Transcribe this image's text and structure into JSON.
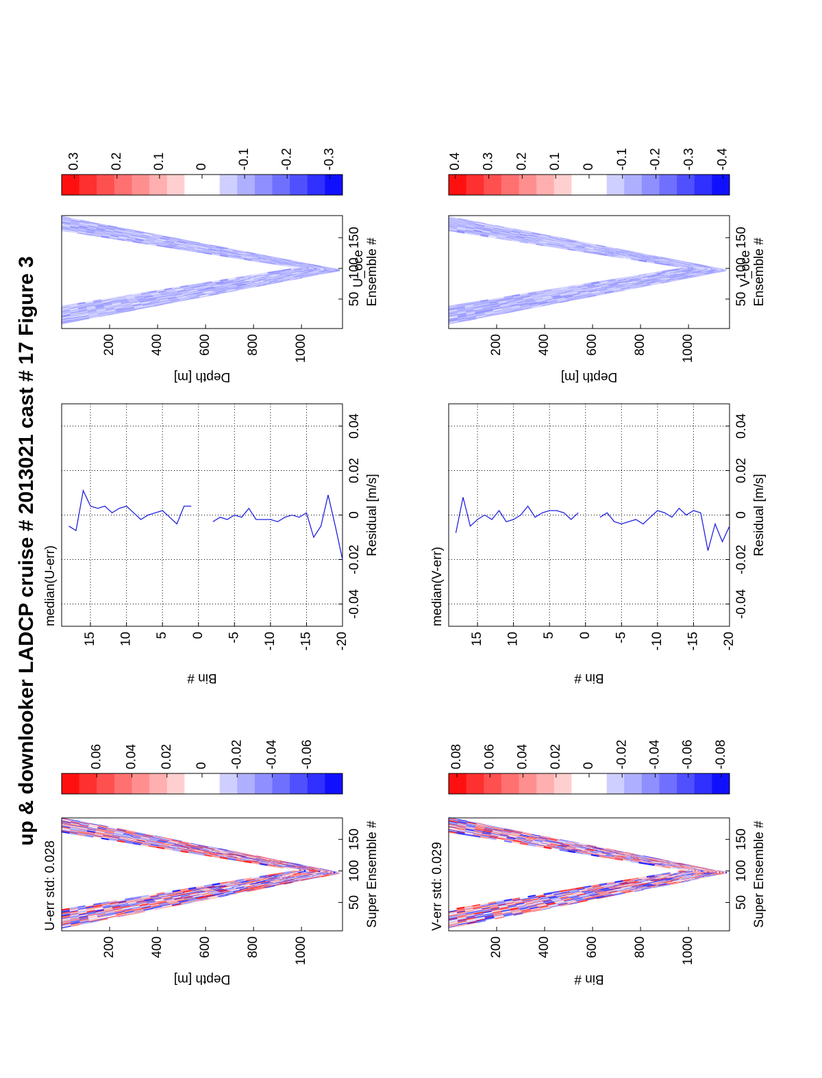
{
  "title": "up & downlooker LADCP cruise # 2013021 cast # 17  Figure 3",
  "chart_data": [
    {
      "type": "heatmap",
      "title": "U-err std: 0.028",
      "xlabel": "Super Ensemble #",
      "ylabel": "Depth [m]",
      "xlim": [
        5,
        184
      ],
      "xticks": [
        50,
        100,
        150
      ],
      "ylim": [
        0,
        1171
      ],
      "yticks": [
        200,
        400,
        600,
        800,
        1000
      ],
      "y_reversed": true,
      "colorbar": {
        "clim": [
          -0.08,
          0.08
        ],
        "ticks": [
          0.06,
          0.04,
          0.02,
          0,
          -0.02,
          -0.04,
          -0.06
        ]
      }
    },
    {
      "type": "line",
      "title": "median(U-err)",
      "xlabel": "Residual [m/s]",
      "ylabel": "Bin #",
      "xlim": [
        -0.05,
        0.05
      ],
      "xticks": [
        -0.04,
        -0.02,
        0,
        0.02,
        0.04
      ],
      "ylim": [
        -20,
        19
      ],
      "yticks": [
        15,
        10,
        5,
        0,
        -5,
        -10,
        -15,
        -20
      ],
      "grid": true,
      "color": "#2020e0",
      "y": [
        18,
        17,
        16,
        15,
        14,
        13,
        12,
        11,
        10,
        9,
        8,
        7,
        6,
        5,
        4,
        3,
        2,
        1,
        0,
        -1,
        -2,
        -3,
        -4,
        -5,
        -6,
        -7,
        -8,
        -9,
        -10,
        -11,
        -12,
        -13,
        -14,
        -15,
        -16,
        -17,
        -18,
        -19,
        -20
      ],
      "values": [
        -0.005,
        -0.007,
        0.011,
        0.004,
        0.003,
        0.004,
        0.001,
        0.003,
        0.004,
        0.001,
        -0.002,
        0.0,
        0.001,
        0.002,
        -0.001,
        -0.004,
        0.004,
        0.004,
        null,
        null,
        -0.003,
        -0.001,
        -0.002,
        0.0,
        -0.001,
        0.003,
        -0.002,
        -0.002,
        -0.002,
        -0.003,
        -0.001,
        0.0,
        -0.001,
        0.001,
        -0.01,
        -0.005,
        0.009,
        -0.005,
        -0.02
      ]
    },
    {
      "type": "heatmap",
      "title": "U_oce",
      "xlabel": "Ensemble #",
      "ylabel": "Depth [m]",
      "xlim": [
        2,
        186
      ],
      "xticks": [
        50,
        100,
        150
      ],
      "ylim": [
        0,
        1171
      ],
      "yticks": [
        200,
        400,
        600,
        800,
        1000
      ],
      "y_reversed": true,
      "colorbar": {
        "clim": [
          -0.33,
          0.33
        ],
        "ticks": [
          0.3,
          0.2,
          0.1,
          0,
          -0.1,
          -0.2,
          -0.3
        ]
      }
    },
    {
      "type": "heatmap",
      "title": "V-err std: 0.029",
      "xlabel": "Super Ensemble #",
      "ylabel": "Bin #",
      "xlim": [
        5,
        184
      ],
      "xticks": [
        50,
        100,
        150
      ],
      "ylim": [
        0,
        1171
      ],
      "yticks": [
        200,
        400,
        600,
        800,
        1000
      ],
      "y_reversed": true,
      "colorbar": {
        "clim": [
          -0.085,
          0.085
        ],
        "ticks": [
          0.08,
          0.06,
          0.04,
          0.02,
          0,
          -0.02,
          -0.04,
          -0.06,
          -0.08
        ]
      }
    },
    {
      "type": "line",
      "title": "median(V-err)",
      "xlabel": "Residual [m/s]",
      "ylabel": "Bin #",
      "xlim": [
        -0.05,
        0.05
      ],
      "xticks": [
        -0.04,
        -0.02,
        0,
        0.02,
        0.04
      ],
      "ylim": [
        -20,
        19
      ],
      "yticks": [
        15,
        10,
        5,
        0,
        -5,
        -10,
        -15,
        -20
      ],
      "grid": true,
      "color": "#2020e0",
      "y": [
        18,
        17,
        16,
        15,
        14,
        13,
        12,
        11,
        10,
        9,
        8,
        7,
        6,
        5,
        4,
        3,
        2,
        1,
        0,
        -1,
        -2,
        -3,
        -4,
        -5,
        -6,
        -7,
        -8,
        -9,
        -10,
        -11,
        -12,
        -13,
        -14,
        -15,
        -16,
        -17,
        -18,
        -19,
        -20
      ],
      "values": [
        -0.008,
        0.008,
        -0.005,
        -0.002,
        0.0,
        -0.002,
        0.002,
        -0.003,
        -0.002,
        0.0,
        0.004,
        -0.001,
        0.001,
        0.002,
        0.002,
        0.001,
        -0.002,
        0.001,
        null,
        null,
        -0.001,
        0.001,
        -0.003,
        -0.004,
        -0.003,
        -0.002,
        -0.004,
        -0.001,
        0.002,
        0.001,
        -0.001,
        0.003,
        0.0,
        0.002,
        0.001,
        -0.016,
        -0.004,
        -0.012,
        -0.005
      ]
    },
    {
      "type": "heatmap",
      "title": "V_oce",
      "xlabel": "Ensemble #",
      "ylabel": "Depth [m]",
      "xlim": [
        2,
        186
      ],
      "xticks": [
        50,
        100,
        150
      ],
      "ylim": [
        0,
        1171
      ],
      "yticks": [
        200,
        400,
        600,
        800,
        1000
      ],
      "y_reversed": true,
      "colorbar": {
        "clim": [
          -0.42,
          0.42
        ],
        "ticks": [
          0.4,
          0.3,
          0.2,
          0.1,
          0,
          -0.1,
          -0.2,
          -0.3,
          -0.4
        ]
      }
    }
  ]
}
